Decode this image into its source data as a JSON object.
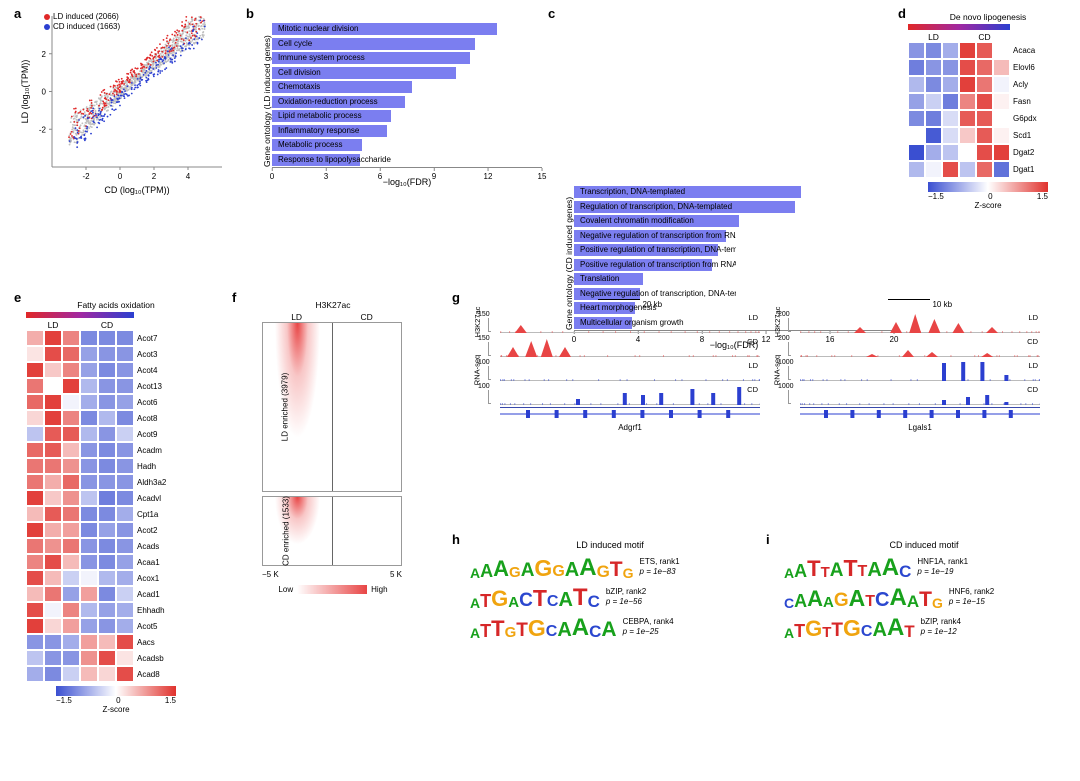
{
  "colors": {
    "ld": "#e02828",
    "cd": "#2b3fd0",
    "grey": "#bfbfbf",
    "bar": "#7b7ef0",
    "heat_low": "#3a4fd1",
    "heat_mid": "#ffffff",
    "heat_high": "#e0322d",
    "h3k27_fill": "#e84545",
    "rna_fill": "#2b3fd0",
    "base_A": "#18a11c",
    "base_C": "#2b47cf",
    "base_G": "#f0a40f",
    "base_T": "#d62728"
  },
  "panel_a": {
    "label": "a",
    "legend": [
      {
        "color": "#e02828",
        "text": "LD induced (2066)"
      },
      {
        "color": "#2b3fd0",
        "text": "CD induced (1663)"
      }
    ],
    "xlabel": "CD (log₁₀(TPM))",
    "ylabel": "LD (log₁₀(TPM))",
    "xlim": [
      -4,
      6
    ],
    "ylim": [
      -4,
      4
    ],
    "ticks_x": [
      -2,
      0,
      2,
      4
    ],
    "ticks_y": [
      -2,
      0,
      2
    ],
    "n_grey": 900,
    "n_red": 260,
    "n_blue": 210
  },
  "panel_b": {
    "label": "b",
    "ylabel": "Gene ontology (LD induced genes)",
    "xlabel": "−log₁₀(FDR)",
    "xmax": 15,
    "xticks": [
      0,
      3,
      6,
      9,
      12,
      15
    ],
    "bar_color": "#7b7ef0",
    "items": [
      {
        "label": "Mitotic nuclear division",
        "value": 12.5
      },
      {
        "label": "Cell cycle",
        "value": 11.3
      },
      {
        "label": "Immune system process",
        "value": 11.0
      },
      {
        "label": "Cell division",
        "value": 10.2
      },
      {
        "label": "Chemotaxis",
        "value": 7.8
      },
      {
        "label": "Oxidation-reduction process",
        "value": 7.4
      },
      {
        "label": "Lipid metabolic process",
        "value": 6.6
      },
      {
        "label": "Inflammatory response",
        "value": 6.4
      },
      {
        "label": "Metabolic process",
        "value": 5.0
      },
      {
        "label": "Response to lipopolysaccharide",
        "value": 4.9
      }
    ]
  },
  "panel_c": {
    "label": "c",
    "ylabel": "Gene ontology (CD induced genes)",
    "xlabel": "−log₁₀(FDR)",
    "xmax": 20,
    "xticks": [
      0,
      4,
      8,
      12,
      16,
      20
    ],
    "bar_color": "#7b7ef0",
    "items": [
      {
        "label": "Transcription, DNA-templated",
        "value": 14.2
      },
      {
        "label": "Regulation of transcription, DNA-templated",
        "value": 13.8
      },
      {
        "label": "Covalent chromatin modification",
        "value": 10.3
      },
      {
        "label": "Negative regulation of transcription from RNA polymerase II promoter",
        "value": 9.5
      },
      {
        "label": "Positive regulation of transcription, DNA-templated",
        "value": 9.0
      },
      {
        "label": "Positive regulation of transcription from RNA polymerase II promoter",
        "value": 8.6
      },
      {
        "label": "Translation",
        "value": 4.3
      },
      {
        "label": "Negative regulation of transcription, DNA-templated",
        "value": 4.1
      },
      {
        "label": "Heart morphogenesis",
        "value": 3.8
      },
      {
        "label": "Multicellular organism growth",
        "value": 3.6
      }
    ]
  },
  "panel_d": {
    "label": "d",
    "title": "De novo lipogenesis",
    "cols": {
      "LD": 3,
      "CD": 3
    },
    "rows": [
      "Acaca",
      "Elovl6",
      "Acly",
      "Fasn",
      "G6pdx",
      "Scd1",
      "Dgat2",
      "Dgat1"
    ],
    "z": [
      [
        -0.9,
        -1.0,
        -0.7,
        1.4,
        1.2,
        0.0
      ],
      [
        -1.1,
        -0.9,
        -0.9,
        1.3,
        1.1,
        0.5
      ],
      [
        -0.6,
        -1.0,
        -0.7,
        1.4,
        1.0,
        -0.1
      ],
      [
        -0.8,
        -0.4,
        -1.1,
        0.9,
        1.3,
        0.1
      ],
      [
        -1.0,
        -1.1,
        -0.3,
        1.2,
        1.2,
        0.0
      ],
      [
        0.0,
        -1.4,
        -0.3,
        0.4,
        1.2,
        0.1
      ],
      [
        -1.5,
        -0.7,
        -0.5,
        0.0,
        1.3,
        1.4
      ],
      [
        -0.6,
        -0.1,
        1.3,
        -0.5,
        1.1,
        -1.2
      ]
    ],
    "zlim": [
      -1.5,
      1.5
    ],
    "cbar_ticks": [
      "−1.5",
      "0",
      "1.5"
    ],
    "cbar_label": "Z-score"
  },
  "panel_e": {
    "label": "e",
    "title": "Fatty acids oxidation",
    "cols": {
      "LD": 3,
      "CD": 3
    },
    "rows": [
      "Acot7",
      "Acot3",
      "Acot4",
      "Acot13",
      "Acot6",
      "Acot8",
      "Acot9",
      "Acadm",
      "Hadh",
      "Aldh3a2",
      "Acadvl",
      "Cpt1a",
      "Acot2",
      "Acads",
      "Acaa1",
      "Acox1",
      "Acad1",
      "Ehhadh",
      "Acot5",
      "Aacs",
      "Acadsb",
      "Acad8"
    ],
    "z": [
      [
        0.6,
        1.4,
        0.9,
        -1.0,
        -1.0,
        -1.0
      ],
      [
        0.2,
        1.3,
        1.1,
        -0.8,
        -0.9,
        -0.9
      ],
      [
        1.4,
        0.4,
        0.9,
        -0.8,
        -1.0,
        -0.9
      ],
      [
        1.0,
        0.0,
        1.4,
        -0.6,
        -0.9,
        -0.9
      ],
      [
        1.1,
        1.4,
        -0.1,
        -0.7,
        -0.9,
        -0.8
      ],
      [
        0.3,
        1.4,
        0.9,
        -1.0,
        -0.6,
        -1.0
      ],
      [
        -0.5,
        1.2,
        1.2,
        -0.6,
        -0.9,
        -0.4
      ],
      [
        1.1,
        1.2,
        0.5,
        -0.9,
        -1.0,
        -0.9
      ],
      [
        1.0,
        1.0,
        0.8,
        -0.9,
        -1.0,
        -0.9
      ],
      [
        1.0,
        0.6,
        1.1,
        -0.9,
        -0.9,
        -0.9
      ],
      [
        1.4,
        0.4,
        0.8,
        -0.5,
        -1.1,
        -1.0
      ],
      [
        0.5,
        1.2,
        1.0,
        -1.0,
        -1.0,
        -0.7
      ],
      [
        1.4,
        0.6,
        0.7,
        -1.0,
        -0.8,
        -0.9
      ],
      [
        1.0,
        0.8,
        1.0,
        -0.9,
        -1.0,
        -0.9
      ],
      [
        0.9,
        1.3,
        0.5,
        -0.9,
        -1.0,
        -0.8
      ],
      [
        1.3,
        0.5,
        -0.4,
        -0.1,
        -0.6,
        -0.7
      ],
      [
        0.5,
        1.0,
        -0.8,
        0.7,
        -1.0,
        -0.4
      ],
      [
        1.3,
        -0.1,
        0.9,
        -0.6,
        -0.8,
        -0.7
      ],
      [
        1.4,
        0.3,
        0.7,
        -0.8,
        -0.9,
        -0.7
      ],
      [
        -0.9,
        -0.9,
        -0.7,
        0.7,
        0.5,
        1.3
      ],
      [
        -0.5,
        -0.9,
        -0.9,
        0.8,
        1.3,
        0.2
      ],
      [
        -0.7,
        -1.0,
        -0.4,
        0.5,
        0.3,
        1.3
      ]
    ],
    "zlim": [
      -1.5,
      1.5
    ],
    "cbar_ticks": [
      "−1.5",
      "0",
      "1.5"
    ],
    "cbar_label": "Z-score"
  },
  "panel_f": {
    "label": "f",
    "title": "H3K27ac",
    "cols": [
      "LD",
      "CD"
    ],
    "groups": [
      {
        "label": "LD enriched (3979)",
        "h": 170
      },
      {
        "label": "CD enriched (1533)",
        "h": 70
      }
    ],
    "xticks": [
      "−5 K",
      "5 K"
    ],
    "cbar": [
      "Low",
      "High"
    ]
  },
  "panel_g": {
    "label": "g",
    "left": {
      "scale": "20 kb",
      "gene": "Adgrf1",
      "tracks": [
        {
          "assay": "H3K27ac",
          "cond": "LD",
          "ymax": 150,
          "color": "#e84545",
          "peaks": [
            [
              0.08,
              0.4
            ]
          ]
        },
        {
          "assay": "H3K27ac",
          "cond": "CD",
          "ymax": 150,
          "color": "#e84545",
          "peaks": [
            [
              0.05,
              0.5
            ],
            [
              0.12,
              0.8
            ],
            [
              0.18,
              0.9
            ],
            [
              0.25,
              0.5
            ]
          ]
        },
        {
          "assay": "RNA-seq",
          "cond": "LD",
          "ymax": 100,
          "color": "#2b3fd0",
          "peaks": []
        },
        {
          "assay": "RNA-seq",
          "cond": "CD",
          "ymax": 100,
          "color": "#2b3fd0",
          "peaks": [
            [
              0.3,
              0.3
            ],
            [
              0.48,
              0.6
            ],
            [
              0.55,
              0.5
            ],
            [
              0.62,
              0.6
            ],
            [
              0.74,
              0.8
            ],
            [
              0.82,
              0.6
            ],
            [
              0.92,
              0.9
            ]
          ]
        }
      ]
    },
    "right": {
      "scale": "10 kb",
      "gene": "Lgals1",
      "tracks": [
        {
          "assay": "H3K27ac",
          "cond": "LD",
          "ymax": 200,
          "color": "#e84545",
          "peaks": [
            [
              0.25,
              0.3
            ],
            [
              0.4,
              0.55
            ],
            [
              0.48,
              0.95
            ],
            [
              0.56,
              0.7
            ],
            [
              0.66,
              0.5
            ],
            [
              0.8,
              0.3
            ]
          ]
        },
        {
          "assay": "H3K27ac",
          "cond": "CD",
          "ymax": 200,
          "color": "#e84545",
          "peaks": [
            [
              0.3,
              0.15
            ],
            [
              0.45,
              0.35
            ],
            [
              0.55,
              0.25
            ],
            [
              0.78,
              0.2
            ]
          ]
        },
        {
          "assay": "RNA-seq",
          "cond": "LD",
          "ymax": 1000,
          "color": "#2b3fd0",
          "peaks": [
            [
              0.6,
              0.9
            ],
            [
              0.68,
              0.95
            ],
            [
              0.76,
              0.95
            ],
            [
              0.86,
              0.3
            ]
          ]
        },
        {
          "assay": "RNA-seq",
          "cond": "CD",
          "ymax": 1000,
          "color": "#2b3fd0",
          "peaks": [
            [
              0.6,
              0.25
            ],
            [
              0.7,
              0.4
            ],
            [
              0.78,
              0.5
            ],
            [
              0.86,
              0.15
            ]
          ]
        }
      ]
    }
  },
  "panel_h": {
    "label": "h",
    "title": "LD induced motif",
    "motifs": [
      {
        "seq": "AAAGAGGAAGTG",
        "name": "ETS, rank1",
        "p": "p = 1e−83"
      },
      {
        "seq": "ATGACTCATC",
        "name": "bZIP, rank2",
        "p": "p = 1e−56"
      },
      {
        "seq": "ATTGTGCAACA",
        "name": "CEBPA, rank4",
        "p": "p = 1e−25"
      }
    ]
  },
  "panel_i": {
    "label": "i",
    "title": "CD induced motif",
    "motifs": [
      {
        "seq": "AATTATTAAC",
        "name": "HNF1A, rank1",
        "p": "p = 1e−19"
      },
      {
        "seq": "CAAAGATCAATG",
        "name": "HNF6, rank2",
        "p": "p = 1e−15"
      },
      {
        "seq": "ATGTTGCAAT",
        "name": "bZIP, rank4",
        "p": "p = 1e−12"
      }
    ]
  }
}
